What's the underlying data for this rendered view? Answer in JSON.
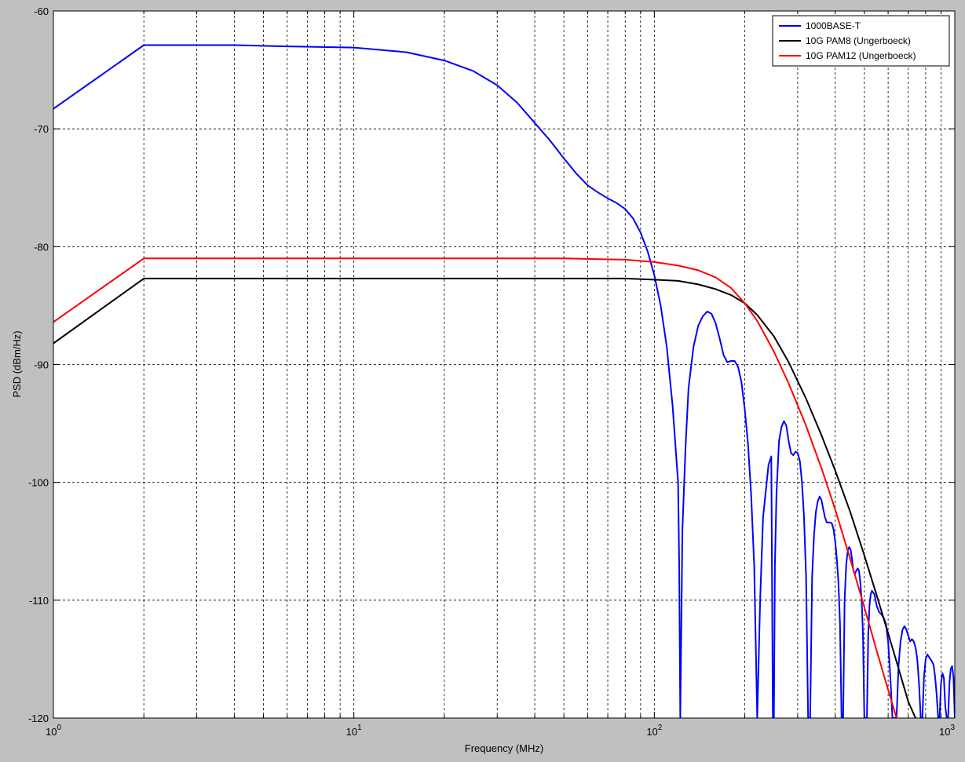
{
  "chart_data": {
    "type": "line",
    "xlabel": "Frequency (MHz)",
    "ylabel": "PSD (dBm/Hz)",
    "xscale": "log",
    "xlim": [
      1,
      1000
    ],
    "ylim": [
      -120,
      -60
    ],
    "grid": true,
    "legend_position": "top-right",
    "x_tick_labels": [
      {
        "base": "10",
        "exp": "0"
      },
      {
        "base": "10",
        "exp": "1"
      },
      {
        "base": "10",
        "exp": "2"
      },
      {
        "base": "10",
        "exp": "3"
      }
    ],
    "y_ticks": [
      -60,
      -70,
      -80,
      -90,
      -100,
      -110,
      -120
    ],
    "series": [
      {
        "name": "1000BASE-T",
        "color": "#0000ff",
        "x": [
          1,
          2,
          3,
          4,
          6,
          10,
          15,
          20,
          25,
          30,
          35,
          40,
          45,
          50,
          55,
          60,
          65,
          70,
          75,
          80,
          85,
          90,
          95,
          100,
          105,
          110,
          115,
          120,
          121,
          122,
          124,
          127,
          130,
          135,
          140,
          145,
          150,
          155,
          160,
          165,
          170,
          175,
          180,
          185,
          190,
          195,
          200,
          205,
          210,
          215,
          220,
          225,
          230,
          240,
          245,
          248,
          250,
          252,
          255,
          260,
          265,
          270,
          275,
          280,
          285,
          290,
          295,
          300,
          305,
          310,
          315,
          320,
          325,
          330,
          335,
          340,
          345,
          350,
          355,
          360,
          365,
          370,
          375,
          380,
          385,
          390,
          395,
          400,
          405,
          410,
          415,
          420,
          425,
          430,
          435,
          440,
          445,
          450,
          455,
          460,
          465,
          470,
          475,
          480,
          485,
          490,
          495,
          500,
          505,
          510,
          515,
          520,
          525,
          530,
          540,
          550,
          560,
          570,
          580,
          590,
          600,
          610,
          620,
          630,
          640,
          650,
          660,
          670,
          680,
          690,
          700,
          710,
          720,
          730,
          740,
          750,
          760,
          770,
          780,
          790,
          800,
          810,
          820,
          830,
          840,
          850,
          860,
          870,
          880,
          890,
          900,
          910,
          920,
          930,
          940,
          950,
          960,
          970,
          980,
          990,
          1000
        ],
        "y": [
          -68.3,
          -62.9,
          -62.9,
          -62.9,
          -63.0,
          -63.1,
          -63.5,
          -64.2,
          -65.1,
          -66.3,
          -67.8,
          -69.5,
          -71.0,
          -72.5,
          -73.8,
          -74.8,
          -75.4,
          -75.9,
          -76.3,
          -76.8,
          -77.6,
          -78.8,
          -80.4,
          -82.4,
          -85.0,
          -88.5,
          -93.5,
          -100.0,
          -107.0,
          -120.0,
          -104.0,
          -97.0,
          -92.0,
          -88.5,
          -86.7,
          -85.9,
          -85.5,
          -85.7,
          -86.5,
          -87.8,
          -89.2,
          -89.8,
          -89.7,
          -89.7,
          -90.2,
          -91.5,
          -93.8,
          -96.7,
          -101.0,
          -107.0,
          -120.0,
          -110.0,
          -103.0,
          -98.5,
          -97.8,
          -120.0,
          -120.0,
          -107.0,
          -101.0,
          -96.5,
          -95.3,
          -94.8,
          -95.2,
          -96.5,
          -97.5,
          -97.7,
          -97.4,
          -97.5,
          -98.2,
          -100.0,
          -103.0,
          -108.0,
          -120.0,
          -120.0,
          -108.0,
          -104.5,
          -102.5,
          -101.6,
          -101.2,
          -101.5,
          -102.3,
          -103.0,
          -103.4,
          -103.4,
          -103.4,
          -103.5,
          -104.0,
          -105.0,
          -106.5,
          -108.5,
          -112.0,
          -120.0,
          -120.0,
          -110.0,
          -107.0,
          -105.8,
          -105.5,
          -105.7,
          -106.5,
          -107.5,
          -107.8,
          -107.5,
          -107.3,
          -107.5,
          -108.5,
          -110.0,
          -113.0,
          -120.0,
          -120.0,
          -120.0,
          -113.0,
          -110.5,
          -109.5,
          -109.2,
          -109.5,
          -110.5,
          -111.0,
          -111.2,
          -111.5,
          -112.0,
          -113.5,
          -116.5,
          -120.0,
          -120.0,
          -120.0,
          -115.5,
          -113.5,
          -112.5,
          -112.2,
          -112.5,
          -113.0,
          -113.5,
          -113.3,
          -113.5,
          -114.0,
          -115.0,
          -117.0,
          -120.0,
          -120.0,
          -116.5,
          -115.0,
          -114.6,
          -114.8,
          -115.0,
          -115.2,
          -115.5,
          -116.5,
          -118.0,
          -120.0,
          -120.0,
          -117.0,
          -116.2,
          -116.6,
          -119.0,
          -120.0,
          -120.0,
          -117.0,
          -115.8,
          -115.6,
          -116.5,
          -120.0
        ]
      },
      {
        "name": "10G PAM8 (Ungerboeck)",
        "color": "#000000",
        "x": [
          1,
          2,
          5,
          10,
          20,
          50,
          80,
          100,
          120,
          140,
          160,
          180,
          200,
          220,
          250,
          280,
          320,
          360,
          400,
          450,
          500,
          550,
          600,
          650,
          700,
          740
        ],
        "y": [
          -88.2,
          -82.7,
          -82.7,
          -82.7,
          -82.7,
          -82.7,
          -82.7,
          -82.8,
          -82.9,
          -83.2,
          -83.6,
          -84.1,
          -84.8,
          -85.8,
          -87.6,
          -89.8,
          -92.9,
          -96.0,
          -99.0,
          -102.6,
          -106.2,
          -109.6,
          -112.8,
          -115.8,
          -118.6,
          -120.0
        ]
      },
      {
        "name": "10G PAM12 (Ungerboeck)",
        "color": "#ff0000",
        "x": [
          1,
          2,
          5,
          10,
          20,
          50,
          80,
          100,
          120,
          140,
          160,
          180,
          200,
          220,
          250,
          280,
          320,
          360,
          400,
          450,
          500,
          550,
          600,
          640
        ],
        "y": [
          -86.4,
          -81.0,
          -81.0,
          -81.0,
          -81.0,
          -81.0,
          -81.1,
          -81.3,
          -81.6,
          -82.0,
          -82.6,
          -83.5,
          -84.8,
          -86.3,
          -88.9,
          -91.6,
          -95.2,
          -98.8,
          -102.3,
          -106.6,
          -110.6,
          -114.3,
          -117.6,
          -120.0
        ]
      }
    ]
  }
}
